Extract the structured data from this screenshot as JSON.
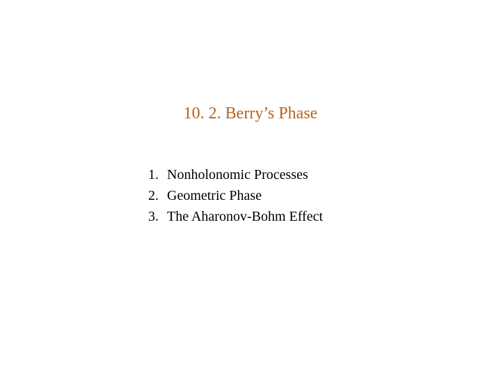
{
  "title": "10. 2. Berry’s Phase",
  "title_color": "#b5651d",
  "title_fontsize": 24,
  "background_color": "#ffffff",
  "text_color": "#000000",
  "list_fontsize": 20,
  "font_family": "Times New Roman",
  "items": [
    {
      "num": "1.",
      "text": "Nonholonomic Processes"
    },
    {
      "num": "2.",
      "text": "Geometric Phase"
    },
    {
      "num": "3.",
      "text": "The Aharonov-Bohm Effect"
    }
  ]
}
